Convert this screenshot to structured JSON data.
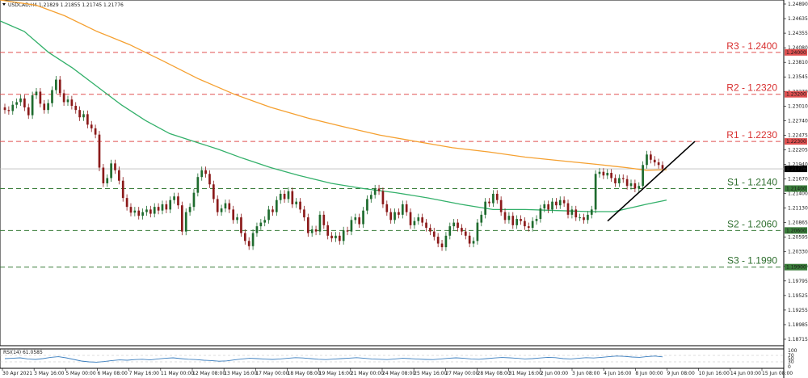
{
  "chart_data": [
    {
      "type": "candlestick",
      "symbol_header": "USDCAD,H4",
      "ohlc_header": "1.21829 1.21855 1.21745 1.21776",
      "ylim": [
        1.184,
        1.25
      ],
      "y_ticks": [
        "1.24890",
        "1.24635",
        "1.24355",
        "1.24080",
        "1.23810",
        "1.23545",
        "1.23270",
        "1.23010",
        "1.22740",
        "1.22475",
        "1.22205",
        "1.21940",
        "1.21670",
        "1.21400",
        "1.21130",
        "1.20865",
        "1.20595",
        "1.20330",
        "1.20060",
        "1.19795",
        "1.19525",
        "1.19255",
        "1.18985",
        "1.18715"
      ],
      "x_ticks": [
        "30 Apr 2021",
        "3 May 16:00",
        "5 May 00:00",
        "6 May 08:00",
        "7 May 16:00",
        "11 May 00:00",
        "12 May 08:00",
        "13 May 16:00",
        "17 May 00:00",
        "18 May 08:00",
        "19 May 16:00",
        "21 May 00:00",
        "24 May 08:00",
        "25 May 16:00",
        "27 May 00:00",
        "28 May 08:00",
        "31 May 16:00",
        "2 Jun 00:00",
        "3 Jun 08:00",
        "4 Jun 16:00",
        "8 Jun 00:00",
        "9 Jun 08:00",
        "10 Jun 16:00",
        "14 Jun 00:00",
        "15 Jun 08:00"
      ],
      "price_series": [
        1.229,
        1.2288,
        1.23,
        1.2305,
        1.2312,
        1.2295,
        1.228,
        1.2318,
        1.2325,
        1.2302,
        1.229,
        1.2303,
        1.2328,
        1.2348,
        1.2322,
        1.2305,
        1.231,
        1.2298,
        1.229,
        1.2276,
        1.2282,
        1.2262,
        1.2255,
        1.2243,
        1.218,
        1.215,
        1.216,
        1.2188,
        1.2175,
        1.2155,
        1.2122,
        1.2105,
        1.2094,
        1.2098,
        1.2088,
        1.2095,
        1.21,
        1.2092,
        1.2105,
        1.2098,
        1.211,
        1.21,
        1.2118,
        1.2125,
        1.2108,
        1.2058,
        1.2095,
        1.2105,
        1.2132,
        1.2162,
        1.2175,
        1.2168,
        1.2148,
        1.212,
        1.2095,
        1.2102,
        1.2112,
        1.21,
        1.208,
        1.2085,
        1.2055,
        1.204,
        1.203,
        1.2055,
        1.2068,
        1.2075,
        1.208,
        1.21,
        1.2095,
        1.2118,
        1.213,
        1.212,
        1.2135,
        1.211,
        1.2115,
        1.21,
        1.2085,
        1.2055,
        1.2062,
        1.2058,
        1.209,
        1.207,
        1.205,
        1.2045,
        1.205,
        1.204,
        1.206,
        1.2058,
        1.208,
        1.2085,
        1.2072,
        1.2098,
        1.212,
        1.2128,
        1.214,
        1.2135,
        1.211,
        1.2095,
        1.208,
        1.2095,
        1.209,
        1.211,
        1.2095,
        1.207,
        1.2078,
        1.2085,
        1.2075,
        1.2065,
        1.2058,
        1.2048,
        1.2035,
        1.2028,
        1.205,
        1.2068,
        1.2075,
        1.2065,
        1.2058,
        1.205,
        1.2035,
        1.204,
        1.2075,
        1.209,
        1.2115,
        1.2112,
        1.213,
        1.2118,
        1.2095,
        1.208,
        1.2088,
        1.207,
        1.2082,
        1.2078,
        1.2068,
        1.2065,
        1.2078,
        1.2082,
        1.2102,
        1.211,
        1.21,
        1.2115,
        1.2108,
        1.2118,
        1.2112,
        1.209,
        1.21,
        1.2085,
        1.2085,
        1.208,
        1.209,
        1.21,
        1.2168,
        1.2172,
        1.2165,
        1.217,
        1.216,
        1.215,
        1.216,
        1.2158,
        1.2145,
        1.215,
        1.214,
        1.2145,
        1.2185,
        1.2205,
        1.2195,
        1.219,
        1.2185,
        1.2178
      ],
      "ma_orange": [
        [
          1.25,
          0
        ],
        [
          1.249,
          45
        ],
        [
          1.247,
          80
        ],
        [
          1.244,
          120
        ],
        [
          1.2415,
          160
        ],
        [
          1.2385,
          200
        ],
        [
          1.235,
          245
        ],
        [
          1.232,
          290
        ],
        [
          1.2295,
          335
        ],
        [
          1.2275,
          380
        ],
        [
          1.2258,
          425
        ],
        [
          1.2242,
          470
        ],
        [
          1.223,
          515
        ],
        [
          1.2218,
          560
        ],
        [
          1.221,
          605
        ],
        [
          1.22,
          650
        ],
        [
          1.2193,
          695
        ],
        [
          1.2186,
          740
        ],
        [
          1.218,
          775
        ],
        [
          1.2175,
          800
        ],
        [
          1.2176,
          825
        ]
      ],
      "ma_green": [
        [
          1.246,
          0
        ],
        [
          1.244,
          30
        ],
        [
          1.24,
          60
        ],
        [
          1.237,
          90
        ],
        [
          1.2335,
          120
        ],
        [
          1.23,
          150
        ],
        [
          1.227,
          180
        ],
        [
          1.2245,
          210
        ],
        [
          1.223,
          240
        ],
        [
          1.2215,
          270
        ],
        [
          1.2198,
          300
        ],
        [
          1.218,
          335
        ],
        [
          1.2165,
          370
        ],
        [
          1.215,
          410
        ],
        [
          1.214,
          450
        ],
        [
          1.2132,
          490
        ],
        [
          1.2122,
          530
        ],
        [
          1.211,
          570
        ],
        [
          1.21,
          610
        ],
        [
          1.21,
          650
        ],
        [
          1.2098,
          690
        ],
        [
          1.2096,
          730
        ],
        [
          1.2096,
          760
        ],
        [
          1.211,
          800
        ],
        [
          1.2118,
          825
        ]
      ],
      "trendline": [
        [
          1.2078,
          752
        ],
        [
          1.223,
          860
        ]
      ],
      "levels": [
        {
          "label": "R3 - 1.2400",
          "price": 1.24,
          "tag": "1.24000",
          "kind": "resistance"
        },
        {
          "label": "R2 - 1.2320",
          "price": 1.232,
          "tag": "1.23200",
          "kind": "resistance"
        },
        {
          "label": "R1 - 1.2230",
          "price": 1.223,
          "tag": "1.22300",
          "kind": "resistance"
        },
        {
          "label": "S1 - 1.2140",
          "price": 1.214,
          "tag": "1.21400",
          "kind": "support"
        },
        {
          "label": "S2 - 1.2060",
          "price": 1.206,
          "tag": "1.20600",
          "kind": "support"
        },
        {
          "label": "S3 - 1.1990",
          "price": 1.199,
          "tag": "1.19900",
          "kind": "support"
        }
      ],
      "current_price_tag": "1.21776",
      "colors": {
        "bull": "#1e6b2e",
        "bear": "#8b1a1a",
        "ma_orange": "#f5a030",
        "ma_green": "#33b06a",
        "resistance": "#e05050",
        "support": "#3a7d3a",
        "trendline": "#000000"
      }
    },
    {
      "type": "line",
      "indicator_header": "RSI(14) 61.0585",
      "ylim": [
        0,
        100
      ],
      "y_ticks": [
        "100",
        "70",
        "50",
        "30",
        "0"
      ],
      "values": [
        50,
        52,
        55,
        48,
        45,
        50,
        58,
        62,
        55,
        45,
        35,
        30,
        28,
        32,
        38,
        42,
        40,
        44,
        46,
        42,
        48,
        52,
        55,
        50,
        46,
        44,
        40,
        38,
        34,
        36,
        42,
        48,
        52,
        50,
        47,
        45,
        48,
        52,
        56,
        54,
        50,
        46,
        44,
        47,
        50,
        53,
        56,
        52,
        48,
        46,
        44,
        48,
        52,
        50,
        47,
        45,
        44,
        48,
        52,
        55,
        52,
        48,
        46,
        50,
        54,
        57,
        55,
        52,
        48,
        50,
        54,
        58,
        56,
        50,
        48,
        52,
        56,
        54,
        58,
        62,
        66,
        64,
        60,
        58,
        63,
        66,
        61
      ],
      "color": "#3c7fbf"
    }
  ]
}
